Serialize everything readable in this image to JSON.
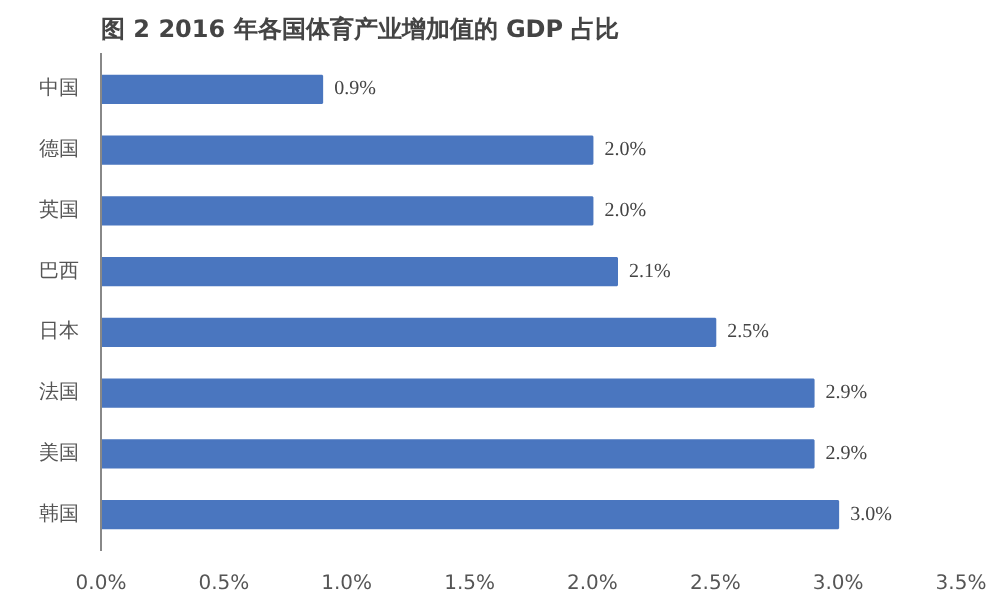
{
  "chart_data": {
    "type": "bar",
    "orientation": "horizontal",
    "title": "图 2 2016 年各国体育产业增加值的 GDP 占比",
    "categories": [
      "中国",
      "德国",
      "英国",
      "巴西",
      "日本",
      "法国",
      "美国",
      "韩国"
    ],
    "values": [
      0.9,
      2.0,
      2.0,
      2.1,
      2.5,
      2.9,
      2.9,
      3.0
    ],
    "value_labels": [
      "0.9%",
      "2.0%",
      "2.0%",
      "2.1%",
      "2.5%",
      "2.9%",
      "2.9%",
      "3.0%"
    ],
    "color": "#4a76bf",
    "xlim": [
      0,
      3.5
    ],
    "xticks": [
      {
        "value": 0,
        "label": "0.0%"
      },
      {
        "value": 0.5,
        "label": "0.5%"
      },
      {
        "value": 1.0,
        "label": "1.0%"
      },
      {
        "value": 1.5,
        "label": "1.5%"
      },
      {
        "value": 2.0,
        "label": "2.0%"
      },
      {
        "value": 2.5,
        "label": "2.5%"
      },
      {
        "value": 3.0,
        "label": "3.0%"
      },
      {
        "value": 3.5,
        "label": "3.5%"
      }
    ],
    "grid": false
  }
}
